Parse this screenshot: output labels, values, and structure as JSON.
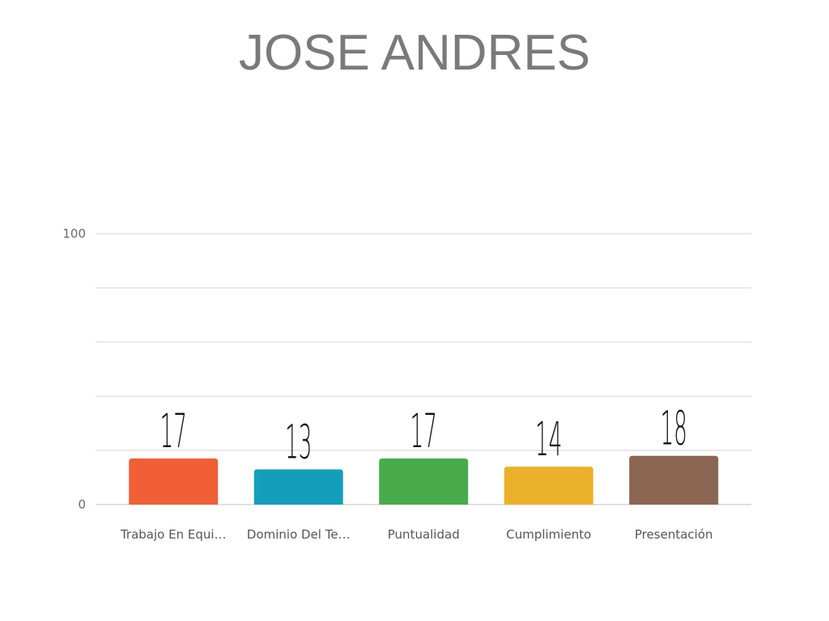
{
  "chart_data": {
    "type": "bar",
    "title": "JOSE ANDRES",
    "categories": [
      "Trabajo En Equi…",
      "Dominio Del Te…",
      "Puntualidad",
      "Cumplimiento",
      "Presentación"
    ],
    "values": [
      17,
      13,
      17,
      14,
      18
    ],
    "data_labels": [
      "17",
      "13",
      "17",
      "14",
      "18"
    ],
    "colors": [
      "#f05f35",
      "#139fbc",
      "#48ab4b",
      "#ebb02a",
      "#8b6652"
    ],
    "ylim": [
      0,
      100
    ],
    "y_ticks": [
      "0",
      "100"
    ],
    "gridlines": 5,
    "grid": true,
    "legend": "none",
    "xlabel": "",
    "ylabel": ""
  }
}
